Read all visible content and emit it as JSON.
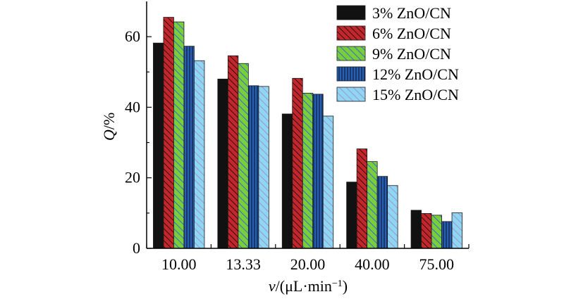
{
  "chart_data": {
    "type": "bar",
    "categories": [
      "10.00",
      "13.33",
      "20.00",
      "40.00",
      "75.00"
    ],
    "series": [
      {
        "name": "3% ZnO/CN",
        "values": [
          58.2,
          48.0,
          38.1,
          18.8,
          10.8
        ],
        "color": "#111111",
        "pattern": "solid"
      },
      {
        "name": "6% ZnO/CN",
        "values": [
          65.5,
          54.6,
          48.2,
          28.2,
          9.9
        ],
        "color": "#c0282e",
        "pattern": "hatch-diag-dark"
      },
      {
        "name": "9% ZnO/CN",
        "values": [
          64.2,
          52.4,
          44.0,
          24.6,
          9.4
        ],
        "color": "#7ccd3c",
        "pattern": "hatch-diag-blue"
      },
      {
        "name": "12% ZnO/CN",
        "values": [
          57.3,
          46.1,
          43.7,
          20.4,
          7.6
        ],
        "color": "#2a5fb0",
        "pattern": "vertical-stripes"
      },
      {
        "name": "15% ZnO/CN",
        "values": [
          53.2,
          45.9,
          37.5,
          17.8,
          10.1
        ],
        "color": "#8fd6f0",
        "pattern": "hatch-diag-purple"
      }
    ],
    "ylim": [
      0,
      70
    ],
    "yticks": [
      "0",
      "20",
      "40",
      "60"
    ],
    "ylabel": {
      "italic": "Q",
      "rest": "/%"
    },
    "xlabel": {
      "italic": "v",
      "rest": "/(μL·min",
      "sup": "−1",
      "close": ")"
    },
    "legend_position": "top-right",
    "grid": false
  }
}
